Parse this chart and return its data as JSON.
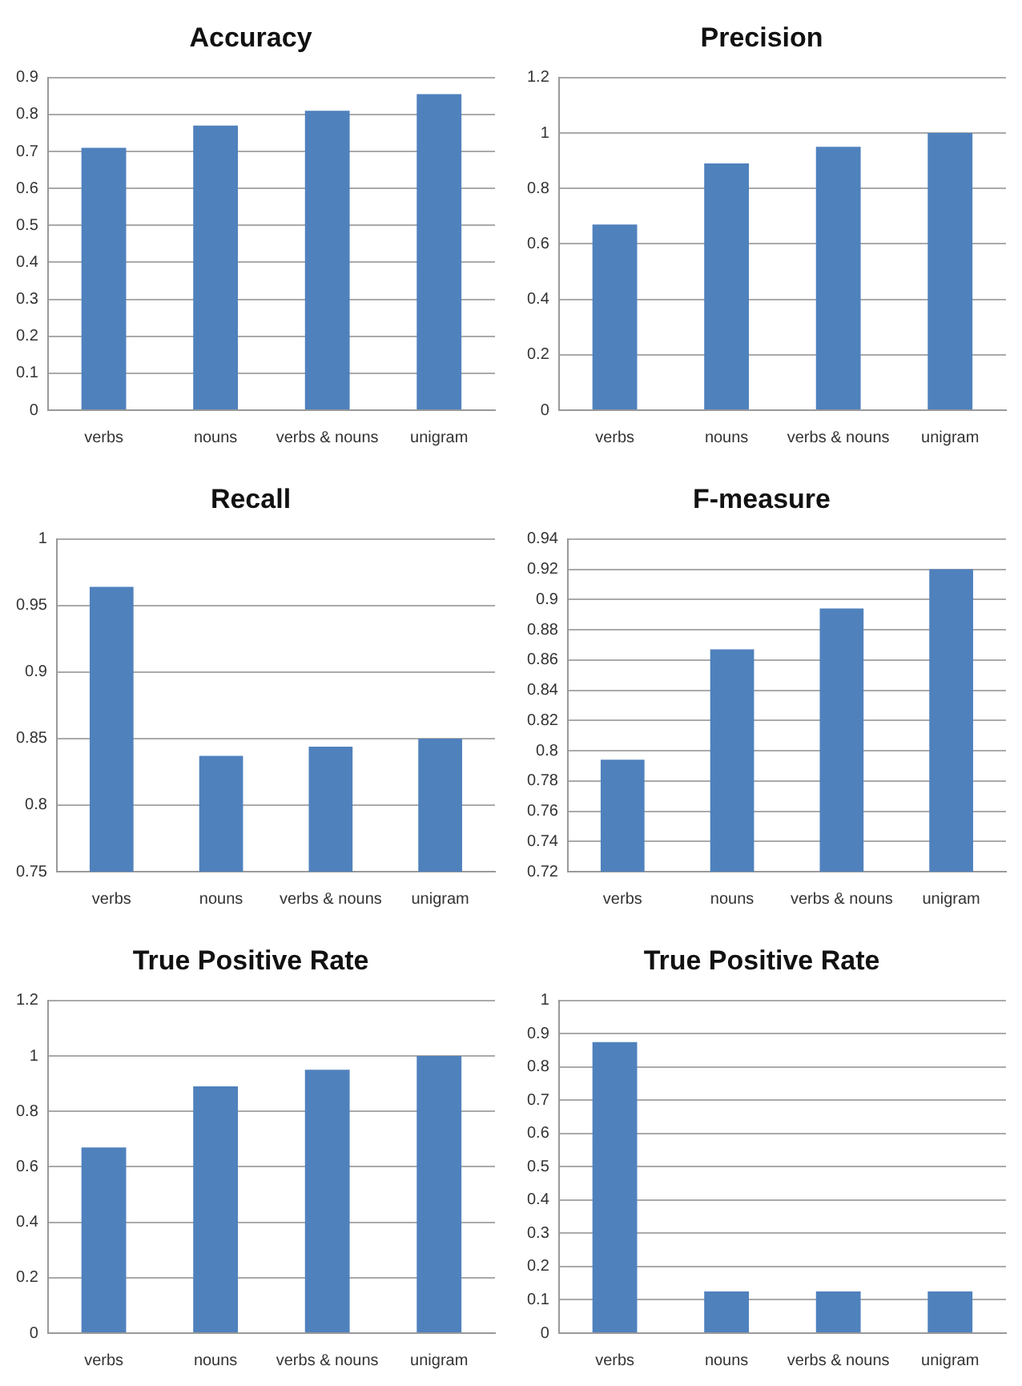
{
  "chart_data": [
    {
      "type": "bar",
      "title": "Accuracy",
      "categories": [
        "verbs",
        "nouns",
        "verbs & nouns",
        "unigram"
      ],
      "values": [
        0.71,
        0.77,
        0.81,
        0.855
      ],
      "color": "#4f81bd",
      "ylim": [
        0,
        0.9
      ],
      "yticks": [
        0,
        0.1,
        0.2,
        0.3,
        0.4,
        0.5,
        0.6,
        0.7,
        0.8,
        0.9
      ],
      "grid": "y"
    },
    {
      "type": "bar",
      "title": "Precision",
      "categories": [
        "verbs",
        "nouns",
        "verbs & nouns",
        "unigram"
      ],
      "values": [
        0.67,
        0.89,
        0.95,
        1.0
      ],
      "color": "#4f81bd",
      "ylim": [
        0,
        1.2
      ],
      "yticks": [
        0,
        0.2,
        0.4,
        0.6,
        0.8,
        1,
        1.2
      ],
      "grid": "y"
    },
    {
      "type": "bar",
      "title": "Recall",
      "categories": [
        "verbs",
        "nouns",
        "verbs & nouns",
        "unigram"
      ],
      "values": [
        0.964,
        0.837,
        0.844,
        0.85
      ],
      "color": "#4f81bd",
      "ylim": [
        0.75,
        1
      ],
      "yticks": [
        0.75,
        0.8,
        0.85,
        0.9,
        0.95,
        1
      ],
      "grid": "y"
    },
    {
      "type": "bar",
      "title": "F-measure",
      "categories": [
        "verbs",
        "nouns",
        "verbs & nouns",
        "unigram"
      ],
      "values": [
        0.794,
        0.867,
        0.894,
        0.92
      ],
      "color": "#4f81bd",
      "ylim": [
        0.72,
        0.94
      ],
      "yticks": [
        0.72,
        0.74,
        0.76,
        0.78,
        0.8,
        0.82,
        0.84,
        0.86,
        0.88,
        0.9,
        0.92,
        0.94
      ],
      "grid": "y"
    },
    {
      "type": "bar",
      "title": "True Positive Rate",
      "categories": [
        "verbs",
        "nouns",
        "verbs & nouns",
        "unigram"
      ],
      "values": [
        0.67,
        0.89,
        0.95,
        1.0
      ],
      "color": "#4f81bd",
      "ylim": [
        0,
        1.2
      ],
      "yticks": [
        0,
        0.2,
        0.4,
        0.6,
        0.8,
        1,
        1.2
      ],
      "grid": "y"
    },
    {
      "type": "bar",
      "title": "True Positive Rate",
      "categories": [
        "verbs",
        "nouns",
        "verbs & nouns",
        "unigram"
      ],
      "values": [
        0.875,
        0.125,
        0.125,
        0.125
      ],
      "color": "#4f81bd",
      "ylim": [
        0,
        1
      ],
      "yticks": [
        0,
        0.1,
        0.2,
        0.3,
        0.4,
        0.5,
        0.6,
        0.7,
        0.8,
        0.9,
        1
      ],
      "grid": "y"
    }
  ]
}
